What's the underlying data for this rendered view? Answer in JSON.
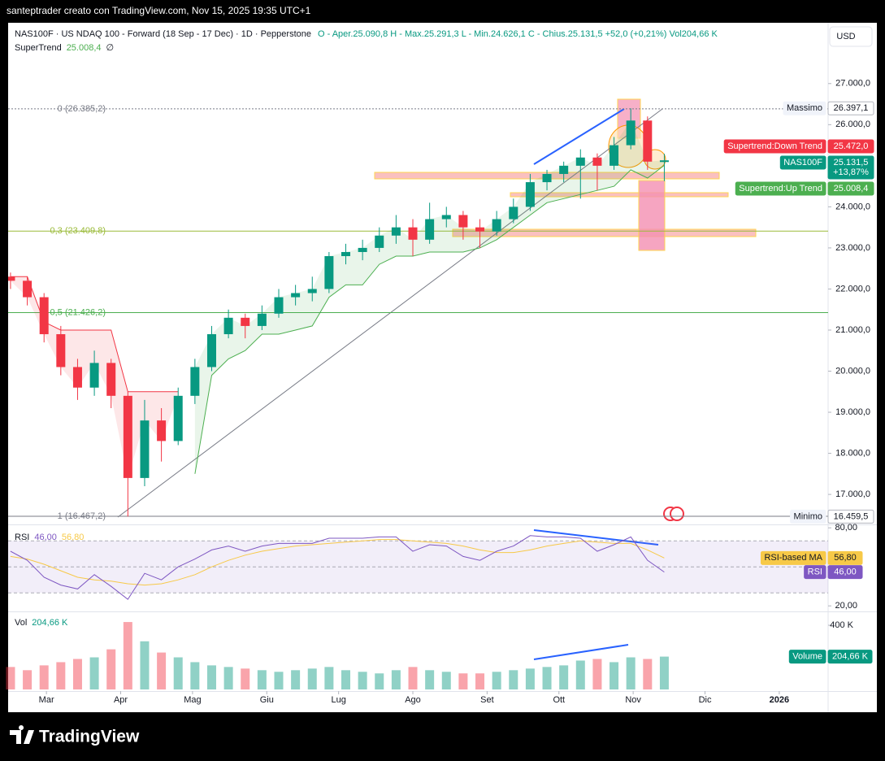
{
  "topbar": "santeptrader creato con TradingView.com, Nov 15, 2025 19:35 UTC+1",
  "footer": "TradingView",
  "currency": "USD",
  "chart_data": {
    "type": "candlestick",
    "title": "NAS100F · US NDAQ 100 - Forward (18 Sep - 17 Dec) · 1D · Pepperstone",
    "ohlc_text": "O - Aper.25.090,8  H - Max.25.291,3  L - Min.24.626,1  C - Chius.25.131,5  +52,0 (+0,21%)  Vol204,66 K",
    "x": [
      45,
      52,
      59,
      66,
      73,
      80,
      87,
      94,
      101,
      108,
      115,
      122,
      129,
      136,
      143,
      150,
      157,
      164,
      171,
      178,
      185,
      192,
      199,
      206,
      213,
      220,
      227,
      234,
      241,
      248,
      255,
      262,
      269,
      276,
      283,
      290,
      297,
      304,
      311,
      318
    ],
    "open": [
      22300,
      22200,
      21800,
      20900,
      20100,
      19600,
      20200,
      19400,
      17400,
      18800,
      18300,
      19400,
      20100,
      20900,
      21300,
      21100,
      21400,
      21800,
      21900,
      22000,
      22800,
      22900,
      23000,
      23300,
      23500,
      23200,
      23700,
      23800,
      23500,
      23400,
      23700,
      24000,
      24600,
      24800,
      25000,
      25200,
      25000,
      25500,
      26100,
      25090.8
    ],
    "high": [
      22400,
      22300,
      21900,
      21100,
      20300,
      20500,
      20300,
      19500,
      19300,
      19100,
      19600,
      20300,
      21100,
      21500,
      21400,
      21600,
      22000,
      22100,
      22300,
      22900,
      23100,
      23200,
      23500,
      23800,
      23700,
      24100,
      24000,
      23900,
      23700,
      23900,
      24200,
      24800,
      24900,
      25100,
      25400,
      25300,
      25700,
      26397.1,
      26200,
      25291.3
    ],
    "low": [
      22000,
      21600,
      20700,
      19900,
      19300,
      19400,
      19100,
      16459.5,
      17200,
      17800,
      18200,
      19200,
      20000,
      20800,
      20800,
      21000,
      21300,
      21600,
      21700,
      21900,
      22600,
      22700,
      22900,
      23100,
      22800,
      23100,
      23500,
      23200,
      23000,
      23300,
      23600,
      23900,
      24400,
      24600,
      24200,
      24400,
      24900,
      25400,
      24900,
      24626.1
    ],
    "close": [
      22200,
      21800,
      20900,
      20100,
      19600,
      20200,
      19400,
      17400,
      18800,
      18300,
      19400,
      20100,
      20900,
      21300,
      21100,
      21400,
      21800,
      21900,
      22000,
      22800,
      22900,
      23000,
      23300,
      23500,
      23200,
      23700,
      23800,
      23500,
      23400,
      23700,
      24000,
      24600,
      24800,
      25000,
      25200,
      25000,
      25500,
      26100,
      25100,
      25131.5
    ],
    "up_color": "#089981",
    "down_color": "#f23645",
    "xlim": [
      44,
      386.4
    ],
    "xticks": [
      {
        "value": 60,
        "label": "Mar"
      },
      {
        "value": 91,
        "label": "Apr"
      },
      {
        "value": 121,
        "label": "Mag"
      },
      {
        "value": 152,
        "label": "Giu"
      },
      {
        "value": 182,
        "label": "Lug"
      },
      {
        "value": 213,
        "label": "Ago"
      },
      {
        "value": 244,
        "label": "Set"
      },
      {
        "value": 274,
        "label": "Ott"
      },
      {
        "value": 305,
        "label": "Nov"
      },
      {
        "value": 335,
        "label": "Dic"
      },
      {
        "value": 366,
        "label": "2026"
      }
    ],
    "ylim": [
      16270,
      28480
    ],
    "yticks": [
      {
        "value": 27000,
        "label": "27.000,0"
      },
      {
        "value": 26000,
        "label": "26.000,0"
      },
      {
        "value": 24000,
        "label": "24.000,0"
      },
      {
        "value": 23000,
        "label": "23.000,0"
      },
      {
        "value": 22000,
        "label": "22.000,0"
      },
      {
        "value": 21000,
        "label": "21.000,0"
      },
      {
        "value": 20000,
        "label": "20.000,0"
      },
      {
        "value": 19000,
        "label": "19.000,0"
      },
      {
        "value": 18000,
        "label": "18.000,0"
      },
      {
        "value": 17000,
        "label": "17.000,0"
      }
    ],
    "grid": false,
    "supertrend": {
      "name": "SuperTrend",
      "extra": "∅",
      "up_color": "#4caf50",
      "down_color": "#f23645",
      "down": [
        22300,
        22300,
        21200,
        21000,
        21000,
        21000,
        21000,
        19500,
        19500,
        19500,
        19500,
        null,
        null,
        null,
        null,
        null,
        null,
        null,
        null,
        null,
        null,
        null,
        null,
        null,
        null,
        null,
        null,
        null,
        null,
        null,
        null,
        null,
        null,
        null,
        null,
        null,
        null,
        null,
        null,
        null
      ],
      "up": [
        null,
        null,
        null,
        null,
        null,
        null,
        null,
        null,
        null,
        null,
        null,
        17500,
        19900,
        20300,
        20500,
        20900,
        20900,
        21000,
        21100,
        21800,
        22100,
        22100,
        22600,
        22800,
        22800,
        22900,
        22900,
        22900,
        23000,
        23200,
        23500,
        23800,
        24100,
        24200,
        24300,
        24400,
        24500,
        24900,
        24700,
        25008.4
      ]
    },
    "levels": [
      {
        "label": "0 (26.385,2)",
        "value": 26385.2,
        "color": "#787b86"
      },
      {
        "label": "0,3 (23.409,8)",
        "value": 23409.8,
        "color": "#9bbb3a"
      },
      {
        "label": "0,5 (21.426,2)",
        "value": 21426.2,
        "color": "#4caf50"
      },
      {
        "label": "1 (16.467,2)",
        "value": 16467.2,
        "color": "#787b86"
      }
    ],
    "axis_labels": [
      {
        "text": "Massimo",
        "value": 26397.1,
        "label": "26.397,1",
        "color": "#ffffff"
      },
      {
        "text": "Supertrend:Down Trend",
        "value": 25472.0,
        "label": "25.472,0",
        "color": "#f23645"
      },
      {
        "text": "NAS100F",
        "value": 25131.5,
        "label": "25.131,5",
        "sub": "+13,87%",
        "color": "#089981"
      },
      {
        "text": "Supertrend:Up Trend",
        "value": 25008.4,
        "label": "25.008,4",
        "color": "#4caf50"
      },
      {
        "text": "Minimo",
        "value": 16459.5,
        "label": "16.459,5",
        "color": "#ffffff"
      }
    ],
    "rsi": {
      "name": "RSI",
      "color": "#7e57c2",
      "ma_color": "#f7c948",
      "values": [
        62,
        55,
        42,
        36,
        33,
        44,
        35,
        25,
        45,
        40,
        50,
        56,
        63,
        66,
        62,
        66,
        68,
        68,
        68,
        72,
        72,
        72,
        73,
        73,
        62,
        67,
        66,
        58,
        55,
        62,
        66,
        74,
        73,
        73,
        72,
        62,
        67,
        73,
        55,
        46
      ],
      "ma": [
        58,
        56,
        52,
        47,
        42,
        40,
        39,
        37,
        36,
        37,
        40,
        44,
        50,
        55,
        59,
        62,
        64,
        66,
        67,
        68,
        69,
        70,
        71,
        71,
        70,
        69,
        68,
        66,
        63,
        61,
        61,
        63,
        66,
        68,
        70,
        69,
        68,
        68,
        63,
        56.8
      ],
      "ylim": [
        17,
        82
      ],
      "yticks": [
        {
          "value": 80,
          "label": "80,00"
        },
        {
          "value": 20,
          "label": "20,00"
        }
      ],
      "levels": [
        70,
        50,
        30
      ],
      "axis_labels": [
        {
          "text": "RSI-based MA",
          "value": 56.8,
          "label": "56,80",
          "color": "#f7c948"
        },
        {
          "text": "RSI",
          "value": 46,
          "label": "46,00",
          "color": "#7e57c2"
        }
      ]
    },
    "volume": {
      "name": "Vol",
      "values": [
        140,
        120,
        150,
        170,
        190,
        200,
        250,
        420,
        300,
        230,
        200,
        170,
        150,
        140,
        130,
        120,
        110,
        120,
        130,
        140,
        120,
        110,
        100,
        120,
        140,
        120,
        110,
        100,
        100,
        110,
        120,
        130,
        140,
        150,
        180,
        190,
        170,
        200,
        190,
        204.66
      ],
      "ylim": [
        0,
        471
      ],
      "yticks": [
        {
          "value": 400,
          "label": "400 K"
        }
      ],
      "axis_label": {
        "text": "Volume",
        "value": 204.66,
        "label": "204,66 K",
        "color": "#089981"
      }
    }
  }
}
